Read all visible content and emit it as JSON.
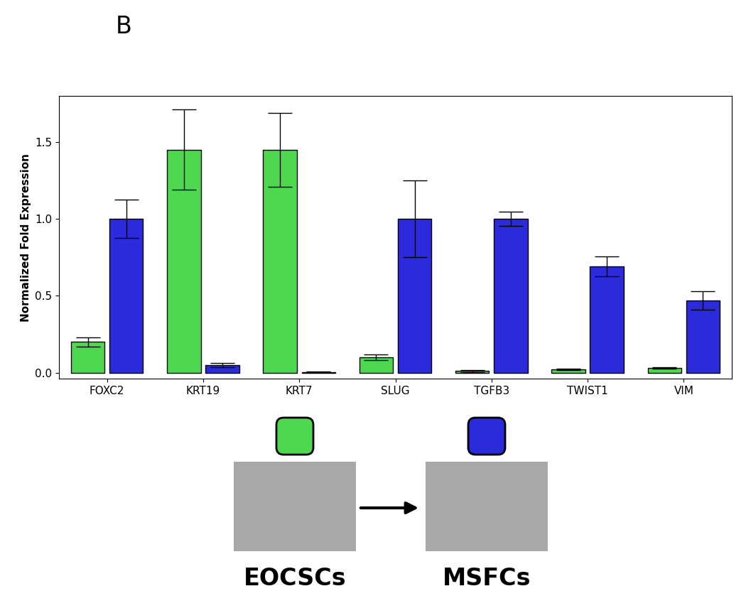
{
  "chart_data": {
    "type": "bar",
    "title": "B",
    "y_label": "Normalized Fold Expression",
    "categories": [
      "FOXC2",
      "KRT19",
      "KRT7",
      "SLUG",
      "TGFB3",
      "TWIST1",
      "VIM"
    ],
    "series": [
      {
        "name": "EOCSCs",
        "color": "#4fd84f",
        "values": [
          0.2,
          1.45,
          1.45,
          0.1,
          0.01,
          0.02,
          0.03
        ],
        "errors": [
          0.03,
          0.26,
          0.24,
          0.02,
          0.005,
          0.005,
          0.005
        ]
      },
      {
        "name": "MSFCs",
        "color": "#2b2bdc",
        "values": [
          1.0,
          0.05,
          0.005,
          1.0,
          1.0,
          0.69,
          0.47
        ],
        "errors": [
          0.125,
          0.015,
          0.002,
          0.25,
          0.045,
          0.065,
          0.06
        ]
      }
    ],
    "ylim": [
      -0.04,
      1.8
    ],
    "yticks": [
      {
        "value": 0.0,
        "label": "0.0"
      },
      0.5,
      {
        "value": 1.0,
        "label": "1.0"
      },
      {
        "value": 1.5,
        "label": "1.5"
      }
    ],
    "grid": false
  }
}
